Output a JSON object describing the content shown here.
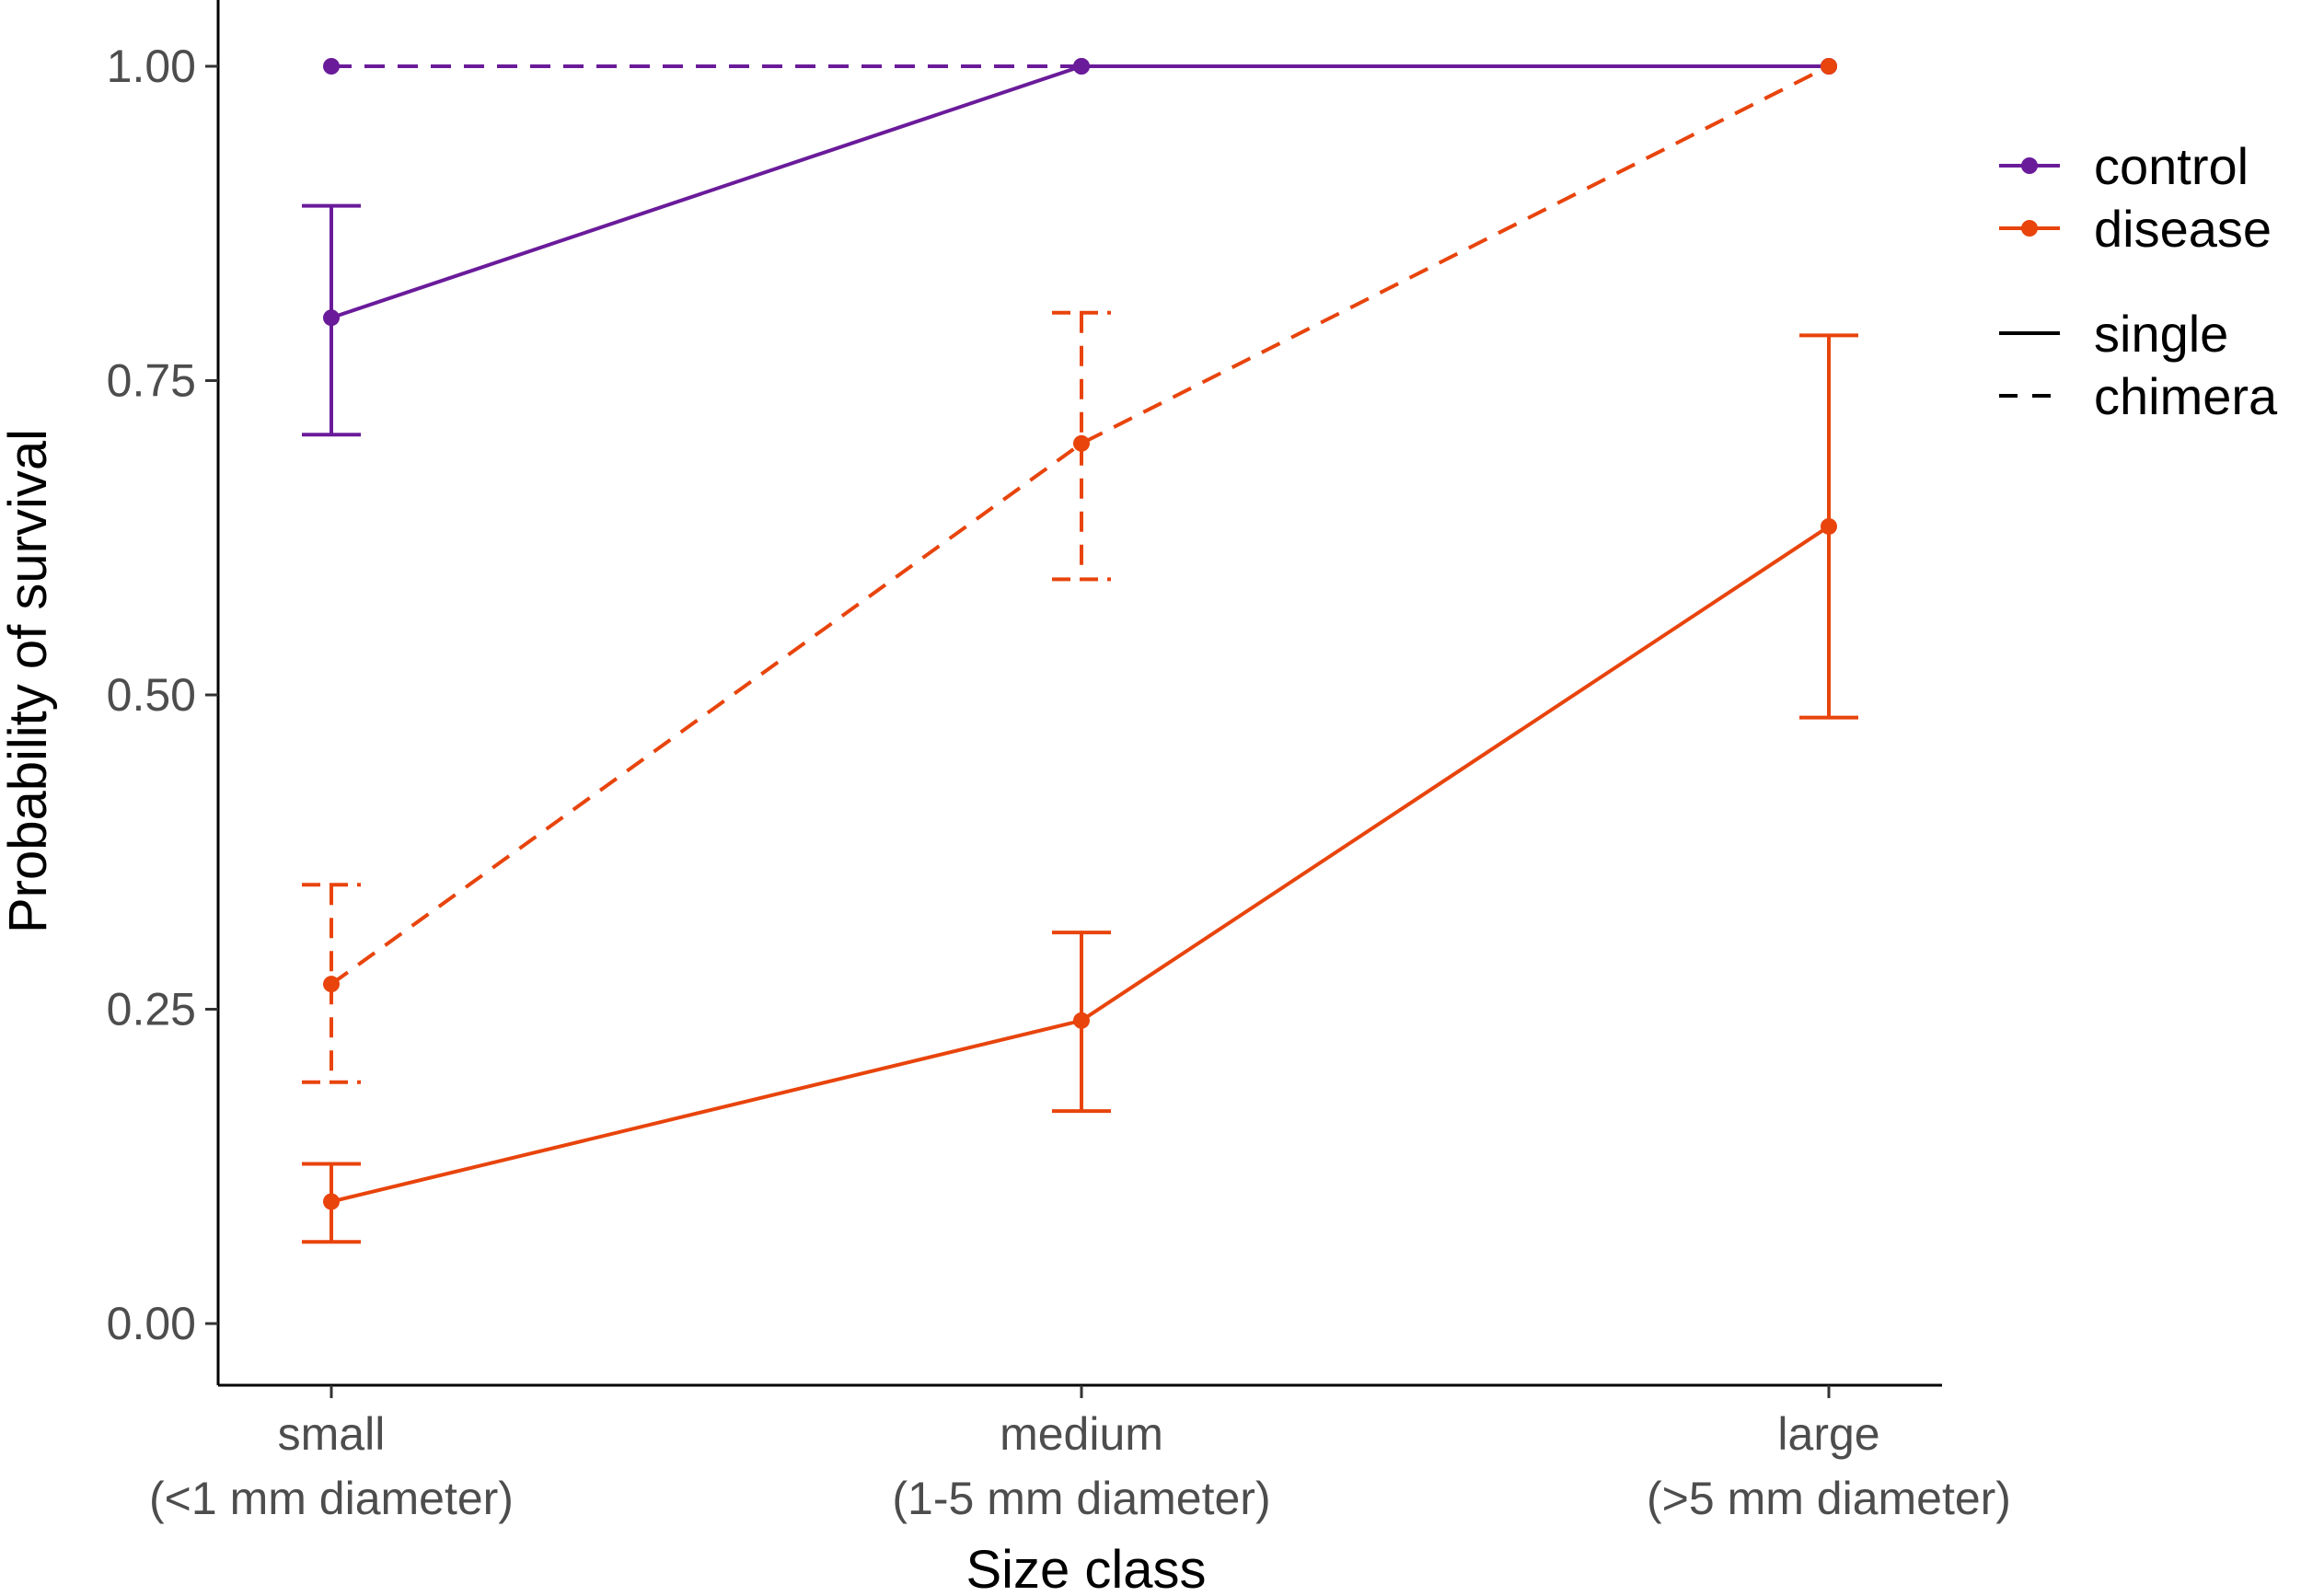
{
  "chart_data": {
    "type": "line",
    "xlabel": "Size class",
    "ylabel": "Probability of survival",
    "categories": [
      {
        "line1": "small",
        "line2": "(<1 mm diameter)"
      },
      {
        "line1": "medium",
        "line2": "(1-5 mm diameter)"
      },
      {
        "line1": "large",
        "line2": "(>5 mm diameter)"
      }
    ],
    "ylim": [
      -0.05,
      1.04
    ],
    "yticks": [
      "0.00",
      "0.25",
      "0.50",
      "0.75",
      "1.00"
    ],
    "grid": false,
    "legend_position": "right",
    "legend": {
      "color_entries": [
        {
          "label": "control",
          "color": "#6a1b9a"
        },
        {
          "label": "disease",
          "color": "#e8440c"
        }
      ],
      "linetype_entries": [
        {
          "label": "single",
          "dash": "solid"
        },
        {
          "label": "chimera",
          "dash": "dashed"
        }
      ]
    },
    "series": [
      {
        "treatment": "control",
        "type": "single",
        "color": "#6a1b9a",
        "dash": "solid",
        "values": [
          0.8,
          1.0,
          1.0
        ],
        "lower": [
          0.707,
          null,
          null
        ],
        "upper": [
          0.889,
          null,
          null
        ]
      },
      {
        "treatment": "control",
        "type": "chimera",
        "color": "#6a1b9a",
        "dash": "dashed",
        "values": [
          1.0,
          1.0,
          1.0
        ],
        "lower": [
          null,
          null,
          null
        ],
        "upper": [
          null,
          null,
          null
        ]
      },
      {
        "treatment": "disease",
        "type": "chimera",
        "color": "#e8440c",
        "dash": "dashed",
        "values": [
          0.27,
          0.7,
          1.0
        ],
        "lower": [
          0.192,
          0.592,
          null
        ],
        "upper": [
          0.349,
          0.804,
          null
        ]
      },
      {
        "treatment": "disease",
        "type": "single",
        "color": "#e8440c",
        "dash": "solid",
        "values": [
          0.097,
          0.241,
          0.634
        ],
        "lower": [
          0.065,
          0.169,
          0.482
        ],
        "upper": [
          0.127,
          0.311,
          0.786
        ]
      }
    ]
  }
}
